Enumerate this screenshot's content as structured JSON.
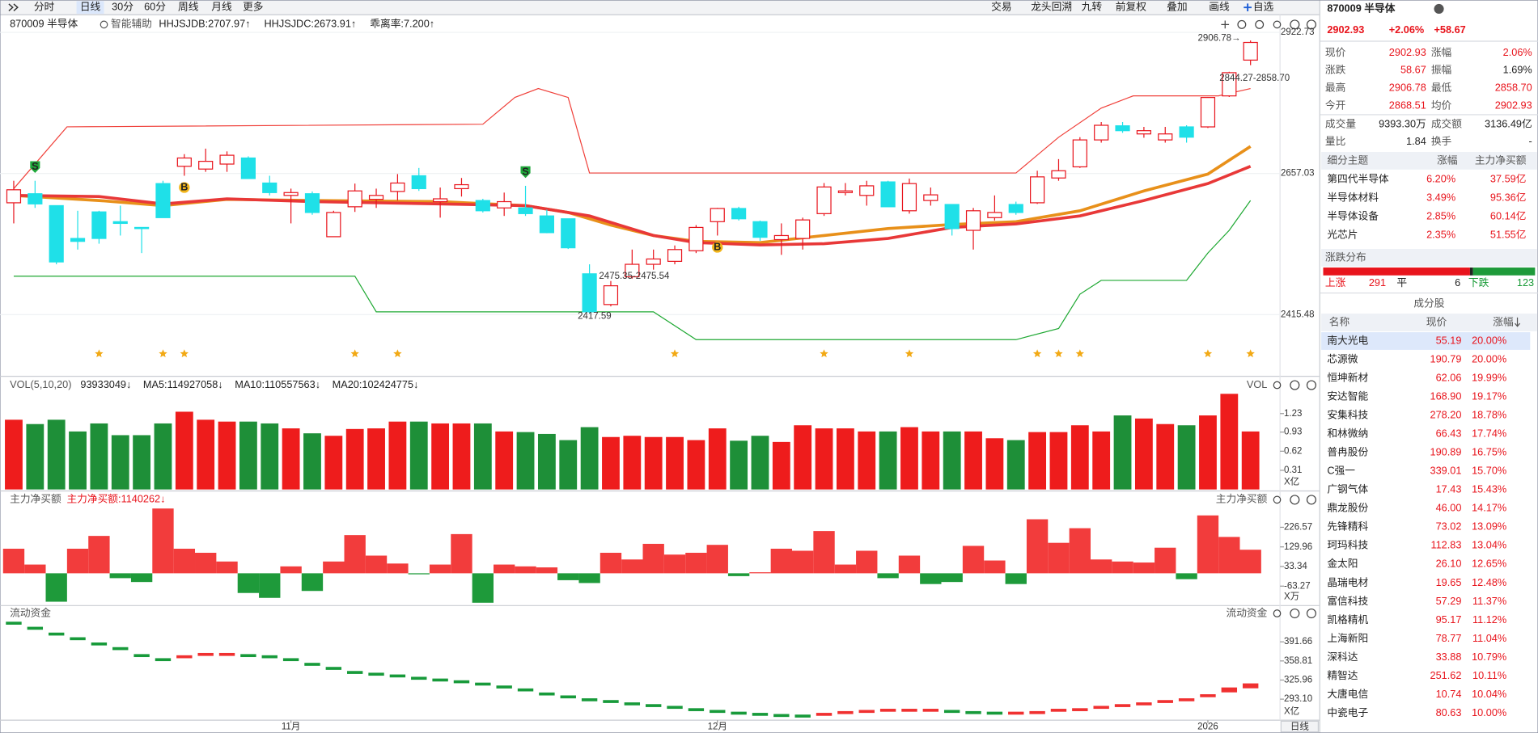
{
  "toolbar": {
    "left": [
      "分时",
      "日线",
      "30分",
      "60分",
      "周线",
      "月线",
      "更多"
    ],
    "active_index": 1,
    "right": [
      "交易",
      "龙头回溯",
      "九转",
      "前复权",
      "叠加",
      "画线",
      "自选"
    ]
  },
  "chart_data": {
    "type": "candlestick",
    "title": "870009 半导体",
    "assist": "智能辅助",
    "indicators": [
      {
        "text": "HHJSJDB:2707.97↑",
        "color": "#e08a10"
      },
      {
        "text": "HHJSJDC:2673.91↑",
        "color": "#e8141c"
      },
      {
        "text": "乖离率:7.200↑",
        "color": "#e08a10"
      }
    ],
    "log_scale": true,
    "ylim": [
      2318.5,
      2957.7
    ],
    "yticks": [
      2415.48,
      2657.03,
      2922.73
    ],
    "open": [
      2605,
      2621,
      2600,
      2543,
      2589,
      2572,
      2562,
      2639,
      2670,
      2665,
      2674,
      2685,
      2640,
      2618,
      2621,
      2546,
      2598,
      2611,
      2625,
      2653,
      2607,
      2630,
      2609,
      2596,
      2596,
      2582,
      2577,
      2483,
      2432,
      2478,
      2499,
      2504,
      2522,
      2572,
      2595,
      2572,
      2541,
      2543,
      2586,
      2623,
      2618,
      2642,
      2591,
      2609,
      2602,
      2557,
      2579,
      2602,
      2605,
      2649,
      2669,
      2718,
      2744,
      2729,
      2718,
      2742,
      2742,
      2800,
      2868.51
    ],
    "close": [
      2628,
      2603,
      2503,
      2538,
      2543,
      2569,
      2560,
      2579,
      2685,
      2679,
      2690,
      2648,
      2623,
      2623,
      2588,
      2588,
      2626,
      2618,
      2640,
      2630,
      2612,
      2637,
      2591,
      2607,
      2586,
      2553,
      2527,
      2420,
      2463,
      2499,
      2508,
      2524,
      2562,
      2595,
      2577,
      2545,
      2548,
      2575,
      2633,
      2626,
      2635,
      2598,
      2639,
      2619,
      2560,
      2591,
      2588,
      2588,
      2651,
      2662,
      2718,
      2745,
      2735,
      2735,
      2729,
      2723,
      2797,
      2844.27,
      2902.93
    ],
    "high": [
      2644,
      2644,
      2600,
      2591,
      2591,
      2600,
      2562,
      2644,
      2692,
      2702,
      2697,
      2688,
      2653,
      2630,
      2625,
      2591,
      2639,
      2630,
      2656,
      2667,
      2632,
      2649,
      2612,
      2623,
      2635,
      2593,
      2577,
      2499,
      2471,
      2524,
      2524,
      2531,
      2566,
      2596,
      2598,
      2574,
      2569,
      2579,
      2640,
      2640,
      2644,
      2644,
      2648,
      2632,
      2602,
      2596,
      2618,
      2607,
      2662,
      2683,
      2723,
      2751,
      2751,
      2742,
      2742,
      2745,
      2798,
      2846,
      2906.78
    ],
    "low": [
      2569,
      2596,
      2499,
      2524,
      2534,
      2548,
      2518,
      2579,
      2653,
      2660,
      2660,
      2648,
      2618,
      2569,
      2584,
      2546,
      2589,
      2596,
      2609,
      2626,
      2579,
      2616,
      2588,
      2582,
      2582,
      2552,
      2525,
      2417.59,
      2429,
      2475,
      2490,
      2499,
      2518,
      2548,
      2574,
      2539,
      2515,
      2524,
      2582,
      2618,
      2600,
      2598,
      2586,
      2600,
      2548,
      2524,
      2574,
      2584,
      2603,
      2644,
      2667,
      2713,
      2731,
      2722,
      2713,
      2713,
      2740,
      2798,
      2858.7
    ],
    "series": [
      {
        "color": "#f0403a",
        "x": [
          0,
          2.5,
          22,
          23.5,
          24.6,
          26,
          27,
          47,
          49,
          51,
          52.5,
          56.5,
          58
        ],
        "values": [
          2630,
          2742,
          2747,
          2797,
          2814,
          2797,
          2658,
          2658,
          2723,
          2777,
          2800,
          2800,
          2814
        ]
      },
      {
        "color": "#1ea832",
        "x": [
          0,
          16,
          17,
          30,
          32,
          47,
          49,
          50,
          51,
          55,
          56,
          57,
          58
        ],
        "values": [
          2479,
          2479,
          2420,
          2420,
          2375,
          2375,
          2393,
          2449,
          2472,
          2472,
          2518,
          2557,
          2609
        ]
      },
      {
        "color": "#e8901a",
        "x": [
          0,
          4,
          7,
          10,
          14,
          20,
          24,
          26,
          28,
          30,
          32,
          35,
          38,
          41,
          44,
          47,
          50,
          53,
          56,
          58
        ],
        "values": [
          2618,
          2609,
          2600,
          2611,
          2609,
          2607,
          2600,
          2588,
          2566,
          2548,
          2538,
          2536,
          2548,
          2560,
          2567,
          2572,
          2591,
          2626,
          2656,
          2706
        ]
      },
      {
        "color": "#e83838",
        "x": [
          0,
          4,
          7,
          10,
          14,
          20,
          24,
          27,
          30,
          32,
          35,
          38,
          41,
          44,
          47,
          50,
          53,
          56,
          58
        ],
        "values": [
          2618,
          2616,
          2603,
          2612,
          2607,
          2603,
          2600,
          2582,
          2548,
          2536,
          2532,
          2534,
          2543,
          2562,
          2568,
          2582,
          2609,
          2639,
          2670
        ]
      }
    ],
    "annotations": [
      {
        "text": "2906.78→",
        "day": 58,
        "price": 2906.78
      },
      {
        "text": "2844.27-2858.70",
        "day": 57,
        "price": 2844.27
      },
      {
        "text": "2475.35-2475.54",
        "day": 28,
        "price": 2475.35
      },
      {
        "text": "2417.59",
        "day": 27,
        "price": 2417.59
      }
    ],
    "signals": [
      {
        "day": 1,
        "label": "S"
      },
      {
        "day": 24,
        "label": "S"
      },
      {
        "day": 8,
        "label": "B"
      },
      {
        "day": 33,
        "label": "B"
      }
    ],
    "star_days": [
      4,
      7,
      8,
      16,
      18,
      31,
      38,
      42,
      48,
      49,
      50,
      56,
      58
    ],
    "date_labels": [
      {
        "day": 13,
        "label": "11月"
      },
      {
        "day": 33,
        "label": "12月"
      },
      {
        "day": 56,
        "label": "2026"
      }
    ],
    "period_button": "日线"
  },
  "volume": {
    "title": "VOL(5,10,20)",
    "side_label": "VOL",
    "legend": [
      {
        "text": "93933049↓",
        "color": "#222"
      },
      {
        "text": "MA5:114927058↓",
        "color": "#e08a10"
      },
      {
        "text": "MA10:110557563↓",
        "color": "#d61ad6"
      },
      {
        "text": "MA20:102424775↓",
        "color": "#169a35"
      }
    ],
    "unit": "X亿",
    "ylim": [
      0,
      1.58
    ],
    "yticks": [
      0.31,
      0.62,
      0.93,
      1.23
    ],
    "values": [
      1.13,
      1.06,
      1.13,
      0.94,
      1.07,
      0.88,
      0.88,
      1.07,
      1.26,
      1.13,
      1.1,
      1.1,
      1.07,
      0.99,
      0.91,
      0.87,
      0.98,
      0.99,
      1.1,
      1.1,
      1.07,
      1.07,
      1.07,
      0.94,
      0.93,
      0.9,
      0.8,
      1.01,
      0.85,
      0.87,
      0.85,
      0.85,
      0.8,
      0.99,
      0.79,
      0.87,
      0.77,
      1.04,
      0.99,
      0.99,
      0.94,
      0.94,
      1.01,
      0.94,
      0.94,
      0.94,
      0.83,
      0.8,
      0.93,
      0.93,
      1.04,
      0.94,
      1.2,
      1.15,
      1.06,
      1.04,
      1.2,
      1.55,
      0.94
    ]
  },
  "net_buy": {
    "title": "主力净买额",
    "legend": "主力净买额:1140262↓",
    "unit": "X万",
    "ylim": [
      -159,
      338
    ],
    "yticks": [
      -63.27,
      33.34,
      129.96,
      226.57
    ],
    "values": [
      121,
      43,
      -140,
      121,
      184,
      -24,
      -43,
      319,
      121,
      101,
      58,
      -97,
      -121,
      34,
      -87,
      58,
      188,
      87,
      48,
      -5,
      43,
      193,
      -145,
      43,
      34,
      29,
      -34,
      -48,
      101,
      68,
      145,
      92,
      101,
      140,
      -14,
      5,
      121,
      111,
      208,
      43,
      111,
      -24,
      87,
      -53,
      -43,
      135,
      63,
      -53,
      266,
      150,
      222,
      68,
      58,
      53,
      126,
      -29,
      285,
      179,
      116
    ]
  },
  "flow": {
    "title": "流动资金",
    "unit": "X亿",
    "ylim": [
      256.9,
      433.8
    ],
    "yticks": [
      {
        "value": 293.1,
        "label": "293.10"
      },
      325.96,
      358.81,
      391.66
    ],
    "values": [
      423.7,
      415,
      405,
      397,
      388,
      380,
      368,
      361,
      366,
      370,
      370,
      368,
      366,
      361,
      353,
      346,
      339,
      336,
      333,
      329,
      326,
      323,
      319,
      314,
      309,
      302,
      297,
      292,
      289,
      285,
      282,
      279,
      275,
      272,
      269,
      267,
      265,
      264,
      267,
      270,
      272,
      274,
      274,
      274,
      272,
      270,
      269,
      269,
      270,
      274,
      275,
      279,
      282,
      285,
      289,
      292,
      299,
      309,
      316
    ]
  },
  "quote": {
    "title": "870009 半导体",
    "price": "2902.93",
    "change_pct": "+2.06%",
    "change": "+58.67",
    "fields": [
      [
        "现价",
        "2902.93",
        "涨幅",
        "2.06%"
      ],
      [
        "涨跌",
        "58.67",
        "振幅",
        "1.69%"
      ],
      [
        "最高",
        "2906.78",
        "最低",
        "2858.70"
      ],
      [
        "今开",
        "2868.51",
        "均价",
        "2902.93"
      ],
      [
        "成交量",
        "9393.30万",
        "成交额",
        "3136.49亿"
      ],
      [
        "量比",
        "1.84",
        "换手",
        "-"
      ]
    ]
  },
  "themes": {
    "headers": [
      "细分主题",
      "涨幅",
      "主力净买额"
    ],
    "rows": [
      [
        "第四代半导体",
        "6.20%",
        "37.59亿"
      ],
      [
        "半导体材料",
        "3.49%",
        "95.36亿"
      ],
      [
        "半导体设备",
        "2.85%",
        "60.14亿"
      ],
      [
        "光芯片",
        "2.35%",
        "51.55亿"
      ]
    ]
  },
  "distribution": {
    "title": "涨跌分布",
    "up_label": "上涨",
    "up": 291,
    "flat_label": "平",
    "flat": 6,
    "down_label": "下跌",
    "down": 123
  },
  "constituents": {
    "title": "成分股",
    "headers": [
      "名称",
      "现价",
      "涨幅"
    ],
    "selected_index": 0,
    "rows": [
      [
        "南大光电",
        "55.19",
        "20.00%"
      ],
      [
        "芯源微",
        "190.79",
        "20.00%"
      ],
      [
        "恒坤新材",
        "62.06",
        "19.99%"
      ],
      [
        "安达智能",
        "168.90",
        "19.17%"
      ],
      [
        "安集科技",
        "278.20",
        "18.78%"
      ],
      [
        "和林微纳",
        "66.43",
        "17.74%"
      ],
      [
        "普冉股份",
        "190.89",
        "16.75%"
      ],
      [
        "C强一",
        "339.01",
        "15.70%"
      ],
      [
        "广钢气体",
        "17.43",
        "15.43%"
      ],
      [
        "鼎龙股份",
        "46.00",
        "14.17%"
      ],
      [
        "先锋精科",
        "73.02",
        "13.09%"
      ],
      [
        "珂玛科技",
        "112.83",
        "13.04%"
      ],
      [
        "金太阳",
        "26.10",
        "12.65%"
      ],
      [
        "晶瑞电材",
        "19.65",
        "12.48%"
      ],
      [
        "富信科技",
        "57.29",
        "11.37%"
      ],
      [
        "凯格精机",
        "95.17",
        "11.12%"
      ],
      [
        "上海新阳",
        "78.77",
        "11.04%"
      ],
      [
        "深科达",
        "33.88",
        "10.79%"
      ],
      [
        "精智达",
        "251.62",
        "10.11%"
      ],
      [
        "大唐电信",
        "10.74",
        "10.04%"
      ],
      [
        "中瓷电子",
        "80.63",
        "10.00%"
      ]
    ]
  }
}
